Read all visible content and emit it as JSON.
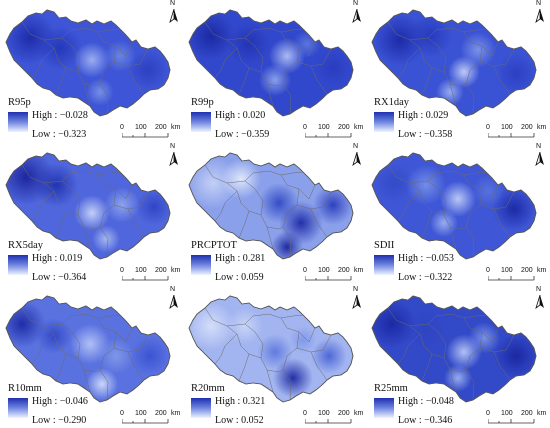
{
  "panels": [
    {
      "title": "R95p",
      "high_label": "High",
      "high": "−0.028",
      "low_label": "Low",
      "low": "−0.323"
    },
    {
      "title": "R99p",
      "high_label": "High",
      "high": "0.020",
      "low_label": "Low",
      "low": "−0.359"
    },
    {
      "title": "RX1day",
      "high_label": "High",
      "high": "0.029",
      "low_label": "Low",
      "low": "−0.358"
    },
    {
      "title": "RX5day",
      "high_label": "High",
      "high": "0.019",
      "low_label": "Low",
      "low": "−0.364"
    },
    {
      "title": "PRCPTOT",
      "high_label": "High",
      "high": "0.281",
      "low_label": "Low",
      "low": "0.059"
    },
    {
      "title": "SDII",
      "high_label": "High",
      "high": "−0.053",
      "low_label": "Low",
      "low": "−0.322"
    },
    {
      "title": "R10mm",
      "high_label": "High",
      "high": "−0.046",
      "low_label": "Low",
      "low": "−0.290"
    },
    {
      "title": "R20mm",
      "high_label": "High",
      "high": "0.321",
      "low_label": "Low",
      "low": "0.052"
    },
    {
      "title": "R25mm",
      "high_label": "High",
      "high": "−0.048",
      "low_label": "Low",
      "low": "−0.346"
    }
  ],
  "north_label": "N",
  "scale_labels": [
    "0",
    "100",
    "200",
    "km"
  ],
  "colors": {
    "high": "#1f2fb0",
    "mid": "#6f86e0",
    "low": "#eef4ff",
    "border": "#6b6b6b"
  }
}
